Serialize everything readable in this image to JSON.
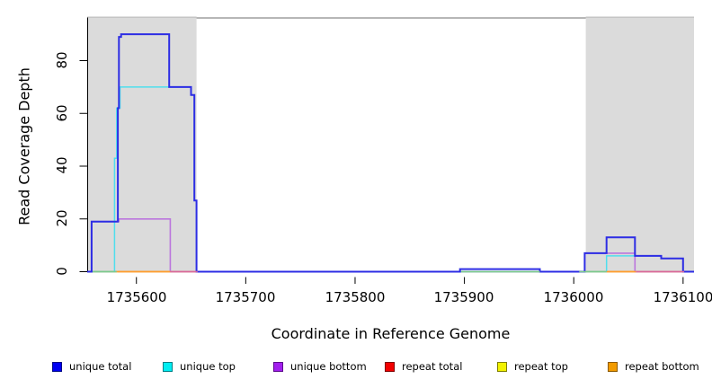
{
  "chart_data": {
    "type": "line",
    "subtype": "step-coverage",
    "xlabel": "Coordinate in Reference Genome",
    "ylabel": "Read Coverage Depth",
    "xlim": [
      1735555,
      1736110
    ],
    "ylim": [
      0,
      96
    ],
    "grid": false,
    "legend_position": "bottom",
    "x_ticks": [
      1735600,
      1735700,
      1735800,
      1735900,
      1736000,
      1736100
    ],
    "x_tick_labels": [
      "1735600",
      "1735700",
      "1735800",
      "1735900",
      "1736000",
      "1736100"
    ],
    "y_ticks": [
      0,
      20,
      40,
      60,
      80
    ],
    "y_tick_labels": [
      "0",
      "20",
      "40",
      "60",
      "80"
    ],
    "shade_color": "#dbdbdb",
    "box_top_color": "#8a8a8a",
    "shaded_regions": [
      {
        "x0": 1735555,
        "x1": 1735655
      },
      {
        "x0": 1736011,
        "x1": 1736110
      }
    ],
    "series": [
      {
        "name": "repeat total",
        "color": "#e33",
        "line_width": 1.2,
        "steps": [
          [
            1735555,
            0
          ]
        ]
      },
      {
        "name": "repeat top",
        "color": "#ee0",
        "line_width": 1.2,
        "steps": [
          [
            1735555,
            0
          ]
        ]
      },
      {
        "name": "repeat bottom",
        "color": "#ff9d2e",
        "line_width": 1.4,
        "steps": [
          [
            1735555,
            0
          ]
        ]
      },
      {
        "name": "unique bottom",
        "color": "#bb76dd",
        "line_width": 1.6,
        "steps": [
          [
            1735555,
            0
          ],
          [
            1735559,
            19
          ],
          [
            1735584,
            20
          ],
          [
            1735631,
            0
          ],
          [
            1736010,
            7
          ],
          [
            1736056,
            0
          ]
        ]
      },
      {
        "name": "unique top",
        "color": "#4fdeed",
        "line_width": 1.5,
        "steps": [
          [
            1735555,
            0
          ],
          [
            1735580,
            43
          ],
          [
            1735582,
            62
          ],
          [
            1735585,
            70
          ],
          [
            1735650,
            67
          ],
          [
            1735653,
            27
          ],
          [
            1735655,
            0
          ],
          [
            1736030,
            6
          ],
          [
            1736080,
            5
          ],
          [
            1736100,
            0
          ]
        ]
      },
      {
        "name": "unique total",
        "color": "#2d2de4",
        "line_width": 2,
        "steps": [
          [
            1735555,
            0
          ],
          [
            1735559,
            19
          ],
          [
            1735583,
            62
          ],
          [
            1735584,
            89
          ],
          [
            1735586,
            90
          ],
          [
            1735630,
            70
          ],
          [
            1735650,
            67
          ],
          [
            1735653,
            27
          ],
          [
            1735655,
            0
          ],
          [
            1735896,
            1
          ],
          [
            1735969,
            0
          ],
          [
            1736010,
            7
          ],
          [
            1736030,
            13
          ],
          [
            1736056,
            6
          ],
          [
            1736080,
            5
          ],
          [
            1736100,
            0
          ]
        ]
      }
    ],
    "baseline_overlap_segments": [
      {
        "x0": 1735560,
        "x1": 1735582,
        "color": "#7cc98c"
      },
      {
        "x0": 1735583,
        "x1": 1735631,
        "color": "#ff9d2e"
      },
      {
        "x0": 1735631,
        "x1": 1735656,
        "color": "#d9699b"
      },
      {
        "x0": 1735897,
        "x1": 1735969,
        "color": "#7cc98c"
      },
      {
        "x0": 1736005,
        "x1": 1736030,
        "color": "#7cc98c"
      },
      {
        "x0": 1736030,
        "x1": 1736057,
        "color": "#ff9d2e"
      },
      {
        "x0": 1736057,
        "x1": 1736101,
        "color": "#d9699b"
      }
    ]
  },
  "legend": {
    "items": [
      {
        "label": "unique total",
        "fill": "#0000f2",
        "border": "#000a85"
      },
      {
        "label": "unique top",
        "fill": "#00eef2",
        "border": "#007f86"
      },
      {
        "label": "unique bottom",
        "fill": "#a21fee",
        "border": "#5c0a8c"
      },
      {
        "label": "repeat total",
        "fill": "#f20000",
        "border": "#7f0000"
      },
      {
        "label": "repeat top",
        "fill": "#f2f200",
        "border": "#7f7f00"
      },
      {
        "label": "repeat bottom",
        "fill": "#f29b00",
        "border": "#8c5a00"
      }
    ]
  }
}
